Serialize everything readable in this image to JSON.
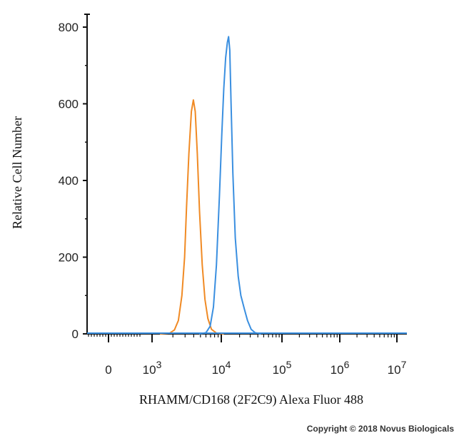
{
  "chart_data": {
    "type": "line",
    "title": "",
    "xlabel": "RHAMM/CD168 (2F2C9) Alexa Fluor 488",
    "ylabel": "Relative Cell Number",
    "x_scale": "log",
    "xlim": [
      0,
      10000000
    ],
    "ylim": [
      0,
      820
    ],
    "y_ticks": [
      0,
      200,
      400,
      600,
      800
    ],
    "x_ticks": [
      {
        "value": 0,
        "base": "0",
        "exp": ""
      },
      {
        "value": 1000,
        "base": "10",
        "exp": "3"
      },
      {
        "value": 10000,
        "base": "10",
        "exp": "4"
      },
      {
        "value": 100000,
        "base": "10",
        "exp": "5"
      },
      {
        "value": 1000000,
        "base": "10",
        "exp": "6"
      },
      {
        "value": 10000000,
        "base": "10",
        "exp": "7"
      }
    ],
    "grid": false,
    "legend": "none",
    "series": [
      {
        "color": "#f08a24",
        "points": [
          [
            1300,
            0
          ],
          [
            1800,
            2
          ],
          [
            2100,
            10
          ],
          [
            2400,
            35
          ],
          [
            2700,
            100
          ],
          [
            2950,
            200
          ],
          [
            3150,
            330
          ],
          [
            3400,
            470
          ],
          [
            3700,
            580
          ],
          [
            3950,
            610
          ],
          [
            4200,
            580
          ],
          [
            4500,
            470
          ],
          [
            4850,
            320
          ],
          [
            5300,
            180
          ],
          [
            5800,
            90
          ],
          [
            6400,
            40
          ],
          [
            7200,
            12
          ],
          [
            8500,
            2
          ],
          [
            11000,
            0
          ]
        ]
      },
      {
        "color": "#3a8fe0",
        "points": [
          [
            4800,
            0
          ],
          [
            6000,
            3
          ],
          [
            6900,
            20
          ],
          [
            7700,
            70
          ],
          [
            8500,
            180
          ],
          [
            9400,
            360
          ],
          [
            10200,
            520
          ],
          [
            11000,
            640
          ],
          [
            11800,
            720
          ],
          [
            12600,
            760
          ],
          [
            13200,
            775
          ],
          [
            13800,
            740
          ],
          [
            14500,
            600
          ],
          [
            15500,
            420
          ],
          [
            17000,
            250
          ],
          [
            19000,
            150
          ],
          [
            21000,
            100
          ],
          [
            24000,
            65
          ],
          [
            27000,
            35
          ],
          [
            31000,
            12
          ],
          [
            36000,
            3
          ],
          [
            45000,
            0
          ]
        ]
      }
    ],
    "copyright": "Copyright © 2018 Novus Biologicals"
  }
}
